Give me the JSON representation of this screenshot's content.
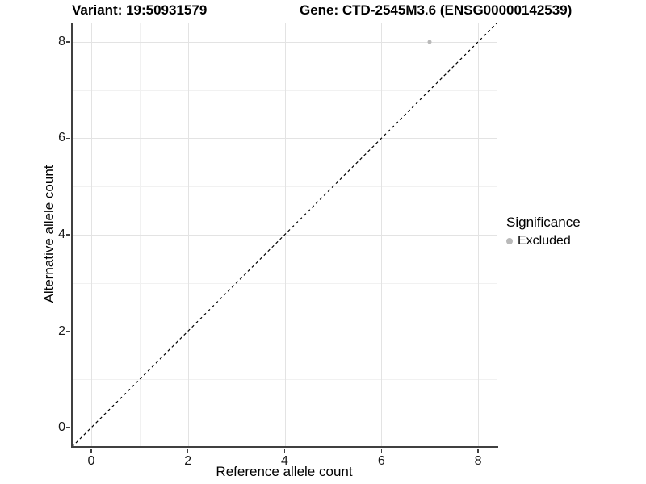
{
  "titles": {
    "variant": "Variant: 19:50931579",
    "gene": "Gene: CTD-2545M3.6 (ENSG00000142539)"
  },
  "axes": {
    "x": {
      "label": "Reference allele count",
      "tick_labels": [
        "0",
        "2",
        "4",
        "6",
        "8"
      ]
    },
    "y": {
      "label": "Alternative allele count",
      "tick_labels": [
        "0",
        "2",
        "4",
        "6",
        "8"
      ]
    }
  },
  "legend": {
    "title": "Significance",
    "items": [
      {
        "label": "Excluded",
        "color": "#b9b9b9"
      }
    ]
  },
  "colors": {
    "background": "#ffffff",
    "major_grid": "#e3e3e3",
    "minor_grid": "#f1f1f1",
    "axis_line": "#404040",
    "text": "#000000",
    "excluded_point": "#b9b9b9",
    "reference_line": "#000000"
  },
  "chart_data": {
    "type": "scatter",
    "title_left": "Variant: 19:50931579",
    "title_right": "Gene: CTD-2545M3.6 (ENSG00000142539)",
    "xlabel": "Reference allele count",
    "ylabel": "Alternative allele count",
    "xlim": [
      -0.4,
      8.4
    ],
    "ylim": [
      -0.4,
      8.4
    ],
    "x_ticks": [
      0,
      2,
      4,
      6,
      8
    ],
    "y_ticks": [
      0,
      2,
      4,
      6,
      8
    ],
    "x_minor_ticks": [
      1,
      3,
      5,
      7
    ],
    "y_minor_ticks": [
      1,
      3,
      5,
      7
    ],
    "grid": "major+minor",
    "legend_position": "right",
    "series": [
      {
        "name": "Excluded",
        "color": "#b9b9b9",
        "points": [
          {
            "x": 7,
            "y": 8
          }
        ]
      }
    ],
    "reference_line": {
      "equation": "y = x",
      "style": "dashed",
      "color": "#000000",
      "from": [
        -0.4,
        -0.4
      ],
      "to": [
        8.4,
        8.4
      ]
    }
  }
}
